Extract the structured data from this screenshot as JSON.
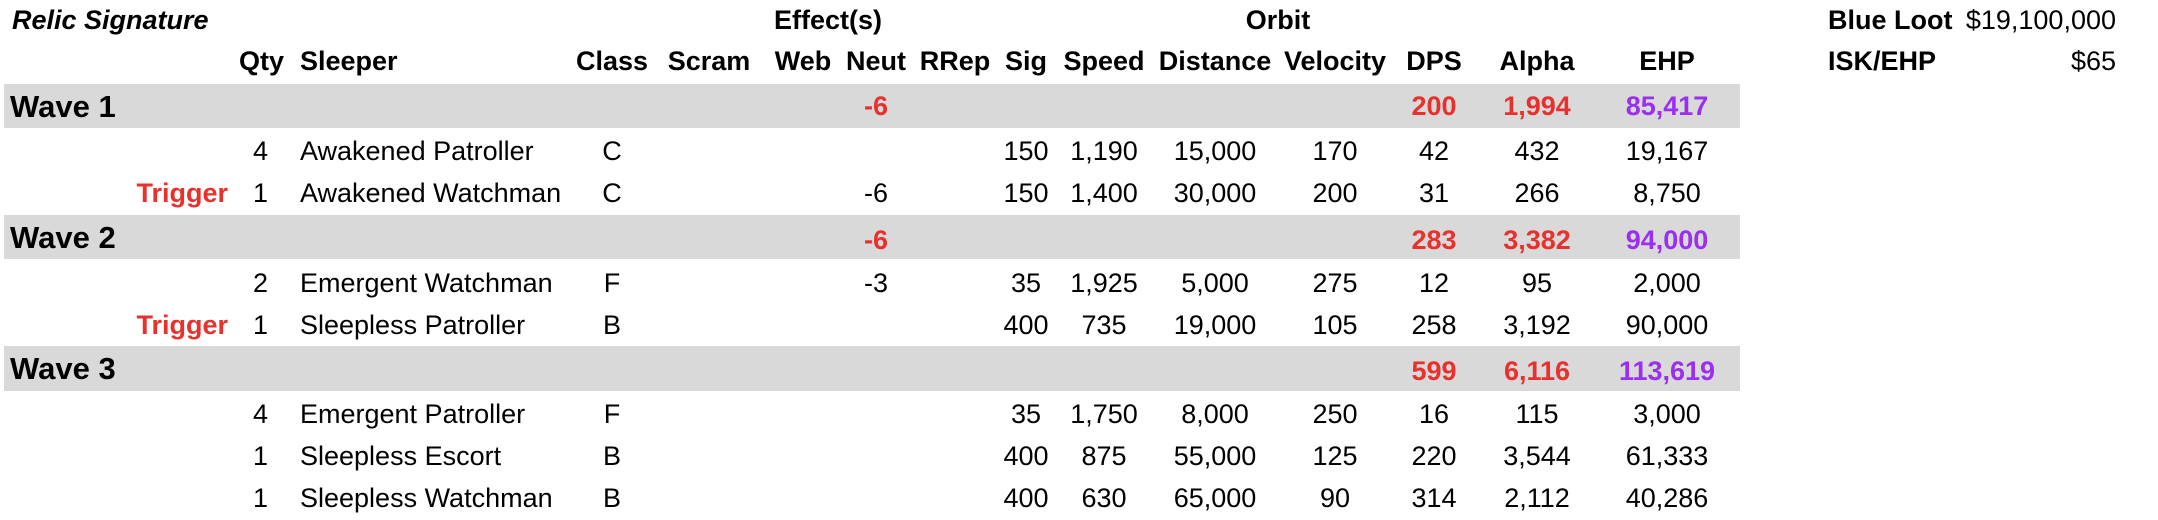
{
  "title": "Relic Signature",
  "group_headers": {
    "effects": "Effect(s)",
    "orbit": "Orbit"
  },
  "columns": {
    "qty": "Qty",
    "sleeper": "Sleeper",
    "class": "Class",
    "scram": "Scram",
    "web": "Web",
    "neut": "Neut",
    "rrep": "RRep",
    "sig": "Sig",
    "speed": "Speed",
    "distance": "Distance",
    "velocity": "Velocity",
    "dps": "DPS",
    "alpha": "Alpha",
    "ehp": "EHP"
  },
  "summary": {
    "blue_loot_label": "Blue Loot",
    "blue_loot_value": "$19,100,000",
    "isk_ehp_label": "ISK/EHP",
    "isk_ehp_value": "$65"
  },
  "waves": [
    {
      "label": "Wave 1",
      "neut": "-6",
      "dps": "200",
      "alpha": "1,994",
      "ehp": "85,417",
      "rows": [
        {
          "trigger": "",
          "qty": "4",
          "sleeper": "Awakened Patroller",
          "class": "C",
          "neut": "",
          "sig": "150",
          "speed": "1,190",
          "distance": "15,000",
          "velocity": "170",
          "dps": "42",
          "alpha": "432",
          "ehp": "19,167"
        },
        {
          "trigger": "Trigger",
          "qty": "1",
          "sleeper": "Awakened Watchman",
          "class": "C",
          "neut": "-6",
          "sig": "150",
          "speed": "1,400",
          "distance": "30,000",
          "velocity": "200",
          "dps": "31",
          "alpha": "266",
          "ehp": "8,750"
        }
      ]
    },
    {
      "label": "Wave 2",
      "neut": "-6",
      "dps": "283",
      "alpha": "3,382",
      "ehp": "94,000",
      "rows": [
        {
          "trigger": "",
          "qty": "2",
          "sleeper": "Emergent Watchman",
          "class": "F",
          "neut": "-3",
          "sig": "35",
          "speed": "1,925",
          "distance": "5,000",
          "velocity": "275",
          "dps": "12",
          "alpha": "95",
          "ehp": "2,000"
        },
        {
          "trigger": "Trigger",
          "qty": "1",
          "sleeper": "Sleepless Patroller",
          "class": "B",
          "neut": "",
          "sig": "400",
          "speed": "735",
          "distance": "19,000",
          "velocity": "105",
          "dps": "258",
          "alpha": "3,192",
          "ehp": "90,000"
        }
      ]
    },
    {
      "label": "Wave 3",
      "neut": "",
      "dps": "599",
      "alpha": "6,116",
      "ehp": "113,619",
      "rows": [
        {
          "trigger": "",
          "qty": "4",
          "sleeper": "Emergent Patroller",
          "class": "F",
          "neut": "",
          "sig": "35",
          "speed": "1,750",
          "distance": "8,000",
          "velocity": "250",
          "dps": "16",
          "alpha": "115",
          "ehp": "3,000"
        },
        {
          "trigger": "",
          "qty": "1",
          "sleeper": "Sleepless Escort",
          "class": "B",
          "neut": "",
          "sig": "400",
          "speed": "875",
          "distance": "55,000",
          "velocity": "125",
          "dps": "220",
          "alpha": "3,544",
          "ehp": "61,333"
        },
        {
          "trigger": "",
          "qty": "1",
          "sleeper": "Sleepless Watchman",
          "class": "B",
          "neut": "",
          "sig": "400",
          "speed": "630",
          "distance": "65,000",
          "velocity": "90",
          "dps": "314",
          "alpha": "2,112",
          "ehp": "40,286"
        }
      ]
    }
  ],
  "colors": {
    "band": "#d9d9d9",
    "red": "#e8312c",
    "purple": "#9a2ff0"
  }
}
